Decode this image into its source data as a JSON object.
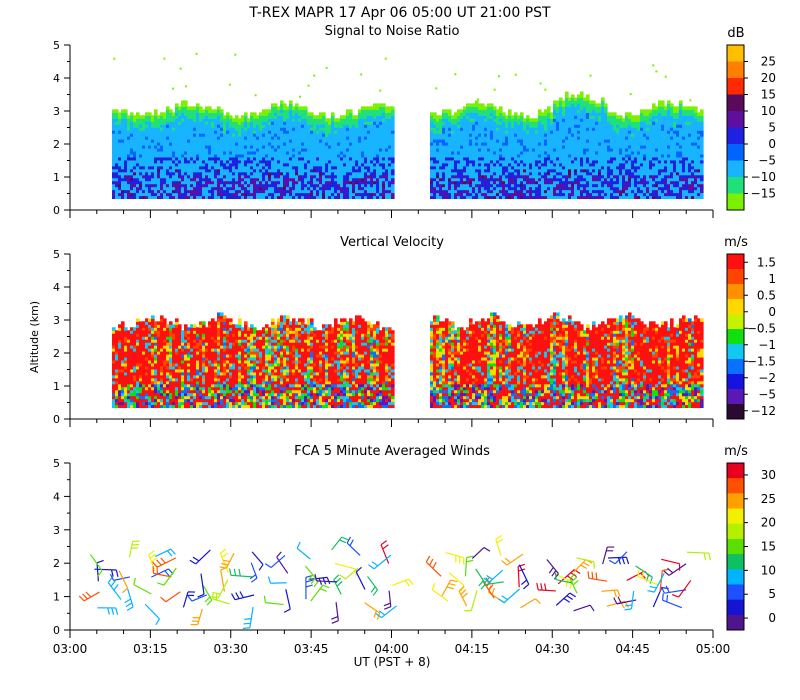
{
  "header": {
    "title": "T-REX  MAPR 17 Apr 06  05:00 UT  21:00  PST"
  },
  "chart_data": [
    {
      "type": "heatmap",
      "title": "Signal to Noise Ratio",
      "xlabel": "",
      "ylabel": "",
      "y_ticks": [
        "0",
        "1",
        "2",
        "3",
        "4",
        "5"
      ],
      "ylim": [
        0,
        5
      ],
      "x_range_minutes": [
        0,
        120
      ],
      "data_gaps_minutes": [
        [
          0,
          7.5
        ],
        [
          60,
          67
        ],
        [
          118,
          120
        ]
      ],
      "data_altitude_range_km": [
        0.35,
        3.0
      ],
      "colorbar": {
        "unit": "dB",
        "ticks": [
          "25",
          "20",
          "15",
          "10",
          "5",
          "0",
          "−5",
          "−10",
          "−15"
        ],
        "colors": [
          "#ffbf00",
          "#ff8000",
          "#ff2a00",
          "#5a0a5a",
          "#5e0fa0",
          "#2020e0",
          "#0064ff",
          "#18b4ff",
          "#20e07c",
          "#7cf000"
        ]
      }
    },
    {
      "type": "heatmap",
      "title": "Vertical Velocity",
      "xlabel": "",
      "ylabel": "Altitude (km)",
      "y_ticks": [
        "0",
        "1",
        "2",
        "3",
        "4",
        "5"
      ],
      "ylim": [
        0,
        5
      ],
      "x_range_minutes": [
        0,
        120
      ],
      "data_gaps_minutes": [
        [
          0,
          7.5
        ],
        [
          60,
          67
        ],
        [
          118,
          120
        ]
      ],
      "data_altitude_range_km": [
        0.35,
        2.9
      ],
      "colorbar": {
        "unit": "m/s",
        "ticks": [
          "1.5",
          "1",
          "0.5",
          "0",
          "−0.5",
          "−1",
          "−1.5",
          "−2",
          "−5",
          "−12"
        ],
        "colors": [
          "#ff1010",
          "#ff4400",
          "#ff9000",
          "#ffd800",
          "#c8f000",
          "#10e010",
          "#10c8f0",
          "#0a70ff",
          "#1414e0",
          "#5a18b4",
          "#2a0a30"
        ]
      }
    },
    {
      "type": "scatter",
      "subtype": "wind-barbs",
      "title": "FCA 5 Minute Averaged Winds",
      "xlabel": "UT  (PST + 8)",
      "ylabel": "",
      "y_ticks": [
        "0",
        "1",
        "2",
        "3",
        "4",
        "5"
      ],
      "ylim": [
        0,
        5
      ],
      "x_ticks": [
        "03:00",
        "03:15",
        "03:30",
        "03:45",
        "04:00",
        "04:15",
        "04:30",
        "04:45",
        "05:00"
      ],
      "x_range_minutes": [
        0,
        120
      ],
      "barb_times_minutes": [
        5,
        10,
        15,
        20,
        25,
        30,
        35,
        40,
        45,
        50,
        55,
        60,
        70,
        75,
        80,
        85,
        90,
        95,
        100,
        105,
        110,
        115
      ],
      "barb_altitudes_km": [
        0.75,
        1.1,
        1.45,
        1.85,
        2.25
      ],
      "colorbar": {
        "unit": "m/s",
        "ticks": [
          "30",
          "25",
          "20",
          "15",
          "10",
          "5",
          "0"
        ],
        "colors": [
          "#e8001e",
          "#ff5000",
          "#ffa000",
          "#f0f000",
          "#b4f000",
          "#5ae000",
          "#10c060",
          "#00b4ff",
          "#1e50ff",
          "#1414d2",
          "#50148c"
        ]
      }
    }
  ]
}
